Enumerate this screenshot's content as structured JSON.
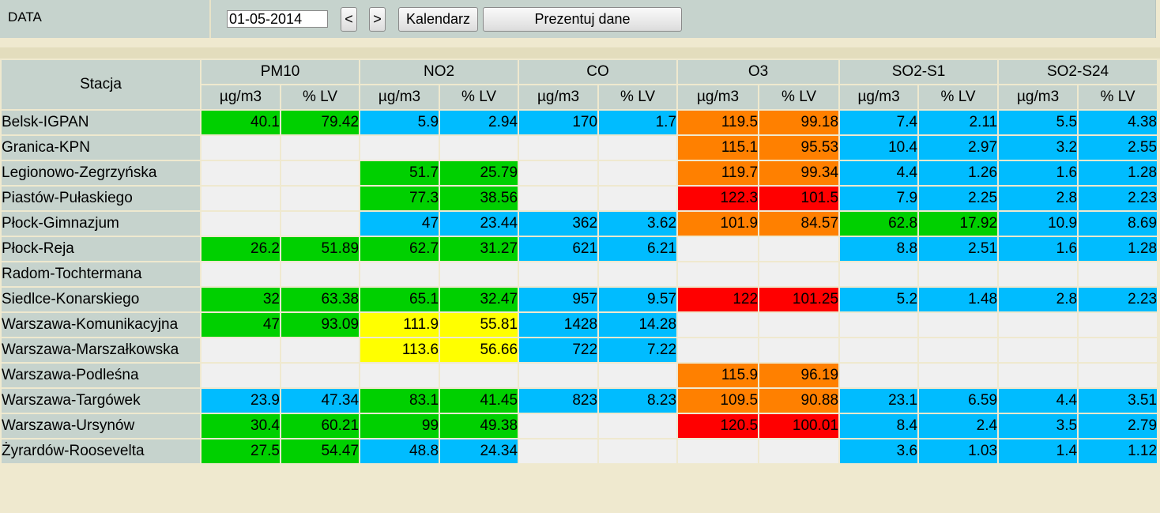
{
  "toolbar": {
    "date_label": "DATA",
    "date_value": "01-05-2014",
    "prev_label": "<",
    "next_label": ">",
    "calendar_label": "Kalendarz",
    "show_label": "Prezentuj dane"
  },
  "table": {
    "station_header": "Stacja",
    "pollutants": [
      "PM10",
      "NO2",
      "CO",
      "O3",
      "SO2-S1",
      "SO2-S24"
    ],
    "subheaders": [
      "µg/m3",
      "% LV"
    ],
    "level_colors": {
      "g": "#00d000",
      "b": "#00bcff",
      "o": "#ff8000",
      "r": "#ff0000",
      "y": "#ffff00",
      "e": "#f0f0f0"
    },
    "rows": [
      {
        "station": "Belsk-IGPAN",
        "cells": [
          [
            "40.1",
            "g"
          ],
          [
            "79.42",
            "g"
          ],
          [
            "5.9",
            "b"
          ],
          [
            "2.94",
            "b"
          ],
          [
            "170",
            "b"
          ],
          [
            "1.7",
            "b"
          ],
          [
            "119.5",
            "o"
          ],
          [
            "99.18",
            "o"
          ],
          [
            "7.4",
            "b"
          ],
          [
            "2.11",
            "b"
          ],
          [
            "5.5",
            "b"
          ],
          [
            "4.38",
            "b"
          ]
        ]
      },
      {
        "station": "Granica-KPN",
        "cells": [
          [
            "",
            "e"
          ],
          [
            "",
            "e"
          ],
          [
            "",
            "e"
          ],
          [
            "",
            "e"
          ],
          [
            "",
            "e"
          ],
          [
            "",
            "e"
          ],
          [
            "115.1",
            "o"
          ],
          [
            "95.53",
            "o"
          ],
          [
            "10.4",
            "b"
          ],
          [
            "2.97",
            "b"
          ],
          [
            "3.2",
            "b"
          ],
          [
            "2.55",
            "b"
          ]
        ]
      },
      {
        "station": "Legionowo-Zegrzyńska",
        "cells": [
          [
            "",
            "e"
          ],
          [
            "",
            "e"
          ],
          [
            "51.7",
            "g"
          ],
          [
            "25.79",
            "g"
          ],
          [
            "",
            "e"
          ],
          [
            "",
            "e"
          ],
          [
            "119.7",
            "o"
          ],
          [
            "99.34",
            "o"
          ],
          [
            "4.4",
            "b"
          ],
          [
            "1.26",
            "b"
          ],
          [
            "1.6",
            "b"
          ],
          [
            "1.28",
            "b"
          ]
        ]
      },
      {
        "station": "Piastów-Pułaskiego",
        "cells": [
          [
            "",
            "e"
          ],
          [
            "",
            "e"
          ],
          [
            "77.3",
            "g"
          ],
          [
            "38.56",
            "g"
          ],
          [
            "",
            "e"
          ],
          [
            "",
            "e"
          ],
          [
            "122.3",
            "r"
          ],
          [
            "101.5",
            "r"
          ],
          [
            "7.9",
            "b"
          ],
          [
            "2.25",
            "b"
          ],
          [
            "2.8",
            "b"
          ],
          [
            "2.23",
            "b"
          ]
        ]
      },
      {
        "station": "Płock-Gimnazjum",
        "cells": [
          [
            "",
            "e"
          ],
          [
            "",
            "e"
          ],
          [
            "47",
            "b"
          ],
          [
            "23.44",
            "b"
          ],
          [
            "362",
            "b"
          ],
          [
            "3.62",
            "b"
          ],
          [
            "101.9",
            "o"
          ],
          [
            "84.57",
            "o"
          ],
          [
            "62.8",
            "g"
          ],
          [
            "17.92",
            "g"
          ],
          [
            "10.9",
            "b"
          ],
          [
            "8.69",
            "b"
          ]
        ]
      },
      {
        "station": "Płock-Reja",
        "cells": [
          [
            "26.2",
            "g"
          ],
          [
            "51.89",
            "g"
          ],
          [
            "62.7",
            "g"
          ],
          [
            "31.27",
            "g"
          ],
          [
            "621",
            "b"
          ],
          [
            "6.21",
            "b"
          ],
          [
            "",
            "e"
          ],
          [
            "",
            "e"
          ],
          [
            "8.8",
            "b"
          ],
          [
            "2.51",
            "b"
          ],
          [
            "1.6",
            "b"
          ],
          [
            "1.28",
            "b"
          ]
        ]
      },
      {
        "station": "Radom-Tochtermana",
        "cells": [
          [
            "",
            "e"
          ],
          [
            "",
            "e"
          ],
          [
            "",
            "e"
          ],
          [
            "",
            "e"
          ],
          [
            "",
            "e"
          ],
          [
            "",
            "e"
          ],
          [
            "",
            "e"
          ],
          [
            "",
            "e"
          ],
          [
            "",
            "e"
          ],
          [
            "",
            "e"
          ],
          [
            "",
            "e"
          ],
          [
            "",
            "e"
          ]
        ]
      },
      {
        "station": "Siedlce-Konarskiego",
        "cells": [
          [
            "32",
            "g"
          ],
          [
            "63.38",
            "g"
          ],
          [
            "65.1",
            "g"
          ],
          [
            "32.47",
            "g"
          ],
          [
            "957",
            "b"
          ],
          [
            "9.57",
            "b"
          ],
          [
            "122",
            "r"
          ],
          [
            "101.25",
            "r"
          ],
          [
            "5.2",
            "b"
          ],
          [
            "1.48",
            "b"
          ],
          [
            "2.8",
            "b"
          ],
          [
            "2.23",
            "b"
          ]
        ]
      },
      {
        "station": "Warszawa-Komunikacyjna",
        "cells": [
          [
            "47",
            "g"
          ],
          [
            "93.09",
            "g"
          ],
          [
            "111.9",
            "y"
          ],
          [
            "55.81",
            "y"
          ],
          [
            "1428",
            "b"
          ],
          [
            "14.28",
            "b"
          ],
          [
            "",
            "e"
          ],
          [
            "",
            "e"
          ],
          [
            "",
            "e"
          ],
          [
            "",
            "e"
          ],
          [
            "",
            "e"
          ],
          [
            "",
            "e"
          ]
        ]
      },
      {
        "station": "Warszawa-Marszałkowska",
        "cells": [
          [
            "",
            "e"
          ],
          [
            "",
            "e"
          ],
          [
            "113.6",
            "y"
          ],
          [
            "56.66",
            "y"
          ],
          [
            "722",
            "b"
          ],
          [
            "7.22",
            "b"
          ],
          [
            "",
            "e"
          ],
          [
            "",
            "e"
          ],
          [
            "",
            "e"
          ],
          [
            "",
            "e"
          ],
          [
            "",
            "e"
          ],
          [
            "",
            "e"
          ]
        ]
      },
      {
        "station": "Warszawa-Podleśna",
        "cells": [
          [
            "",
            "e"
          ],
          [
            "",
            "e"
          ],
          [
            "",
            "e"
          ],
          [
            "",
            "e"
          ],
          [
            "",
            "e"
          ],
          [
            "",
            "e"
          ],
          [
            "115.9",
            "o"
          ],
          [
            "96.19",
            "o"
          ],
          [
            "",
            "e"
          ],
          [
            "",
            "e"
          ],
          [
            "",
            "e"
          ],
          [
            "",
            "e"
          ]
        ]
      },
      {
        "station": "Warszawa-Targówek",
        "cells": [
          [
            "23.9",
            "b"
          ],
          [
            "47.34",
            "b"
          ],
          [
            "83.1",
            "g"
          ],
          [
            "41.45",
            "g"
          ],
          [
            "823",
            "b"
          ],
          [
            "8.23",
            "b"
          ],
          [
            "109.5",
            "o"
          ],
          [
            "90.88",
            "o"
          ],
          [
            "23.1",
            "b"
          ],
          [
            "6.59",
            "b"
          ],
          [
            "4.4",
            "b"
          ],
          [
            "3.51",
            "b"
          ]
        ]
      },
      {
        "station": "Warszawa-Ursynów",
        "cells": [
          [
            "30.4",
            "g"
          ],
          [
            "60.21",
            "g"
          ],
          [
            "99",
            "g"
          ],
          [
            "49.38",
            "g"
          ],
          [
            "",
            "e"
          ],
          [
            "",
            "e"
          ],
          [
            "120.5",
            "r"
          ],
          [
            "100.01",
            "r"
          ],
          [
            "8.4",
            "b"
          ],
          [
            "2.4",
            "b"
          ],
          [
            "3.5",
            "b"
          ],
          [
            "2.79",
            "b"
          ]
        ]
      },
      {
        "station": "Żyrardów-Roosevelta",
        "cells": [
          [
            "27.5",
            "g"
          ],
          [
            "54.47",
            "g"
          ],
          [
            "48.8",
            "b"
          ],
          [
            "24.34",
            "b"
          ],
          [
            "",
            "e"
          ],
          [
            "",
            "e"
          ],
          [
            "",
            "e"
          ],
          [
            "",
            "e"
          ],
          [
            "3.6",
            "b"
          ],
          [
            "1.03",
            "b"
          ],
          [
            "1.4",
            "b"
          ],
          [
            "1.12",
            "b"
          ]
        ]
      }
    ]
  }
}
